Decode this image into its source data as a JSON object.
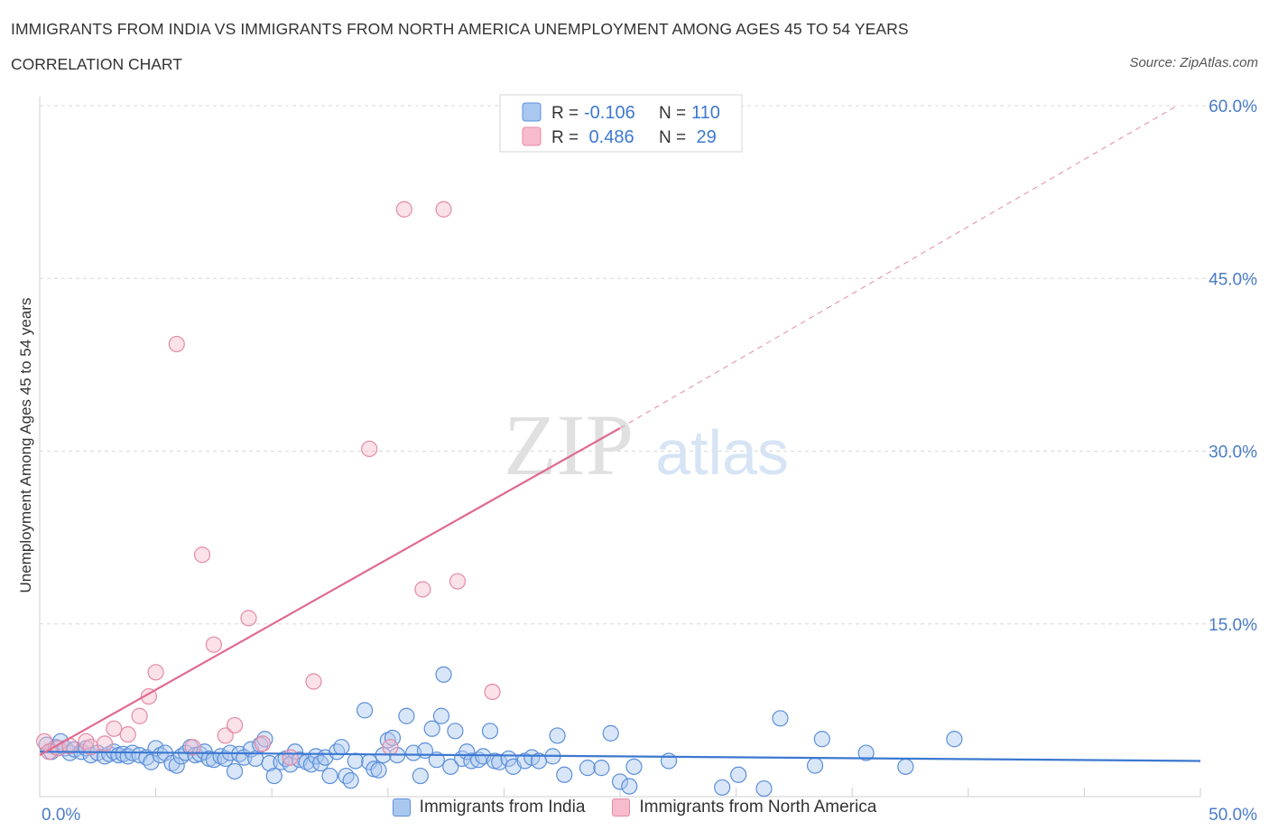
{
  "title": "IMMIGRANTS FROM INDIA VS IMMIGRANTS FROM NORTH AMERICA UNEMPLOYMENT AMONG AGES 45 TO 54 YEARS",
  "subtitle": "CORRELATION CHART",
  "source": "Source: ZipAtlas.com",
  "watermark": {
    "zip": "ZIP",
    "atlas": "atlas"
  },
  "colors": {
    "india_fill": "#aac8ef",
    "india_stroke": "#5b8fd9",
    "india_line": "#3c78d0",
    "na_fill": "#f6bccd",
    "na_stroke": "#e48aa6",
    "na_line": "#e06a90",
    "axis_label": "#4a7cc9",
    "grid": "#d8d8d8"
  },
  "stats_box": {
    "rows": [
      {
        "r_label": "R =",
        "r_value": "-0.106",
        "n_label": "N =",
        "n_value": "110"
      },
      {
        "r_label": "R =",
        "r_value": " 0.486",
        "n_label": "N =",
        "n_value": " 29"
      }
    ]
  },
  "chart_data": {
    "type": "scatter",
    "ylabel": "Unemployment Among Ages 45 to 54 years",
    "xlim": [
      0,
      50
    ],
    "ylim": [
      0,
      60
    ],
    "x_tick_labels": {
      "min": "0.0%",
      "max": "50.0%"
    },
    "y_ticks": [
      {
        "value": 15,
        "label": "15.0%"
      },
      {
        "value": 30,
        "label": "30.0%"
      },
      {
        "value": 45,
        "label": "45.0%"
      },
      {
        "value": 60,
        "label": "60.0%"
      }
    ],
    "grid": true,
    "legend_position": "bottom-center",
    "series": [
      {
        "name": "Immigrants from India",
        "R": -0.106,
        "N": 110,
        "trend": {
          "x0": 0,
          "y0": 3.9,
          "x1": 50,
          "y1": 3.1
        },
        "points": [
          [
            0.3,
            4.5
          ],
          [
            0.5,
            3.9
          ],
          [
            0.7,
            4.3
          ],
          [
            0.9,
            4.8
          ],
          [
            1.1,
            4.2
          ],
          [
            1.3,
            3.8
          ],
          [
            1.5,
            4.1
          ],
          [
            1.8,
            3.9
          ],
          [
            2.0,
            4.2
          ],
          [
            2.2,
            3.6
          ],
          [
            2.5,
            3.8
          ],
          [
            2.8,
            3.5
          ],
          [
            3.0,
            3.7
          ],
          [
            3.2,
            3.9
          ],
          [
            3.4,
            3.6
          ],
          [
            3.6,
            3.7
          ],
          [
            3.8,
            3.5
          ],
          [
            4.0,
            3.8
          ],
          [
            4.3,
            3.6
          ],
          [
            4.6,
            3.4
          ],
          [
            4.8,
            3.0
          ],
          [
            5.0,
            4.2
          ],
          [
            5.2,
            3.6
          ],
          [
            5.4,
            3.8
          ],
          [
            5.7,
            2.9
          ],
          [
            5.9,
            2.7
          ],
          [
            6.1,
            3.5
          ],
          [
            6.3,
            3.8
          ],
          [
            6.5,
            4.3
          ],
          [
            6.7,
            3.6
          ],
          [
            6.9,
            3.7
          ],
          [
            7.1,
            3.9
          ],
          [
            7.3,
            3.3
          ],
          [
            7.5,
            3.2
          ],
          [
            7.8,
            3.5
          ],
          [
            8.0,
            3.3
          ],
          [
            8.2,
            3.8
          ],
          [
            8.4,
            2.2
          ],
          [
            8.6,
            3.7
          ],
          [
            8.8,
            3.4
          ],
          [
            9.1,
            4.1
          ],
          [
            9.3,
            3.3
          ],
          [
            9.5,
            4.5
          ],
          [
            9.7,
            5.0
          ],
          [
            9.9,
            2.9
          ],
          [
            10.1,
            1.8
          ],
          [
            10.4,
            3.0
          ],
          [
            10.6,
            3.3
          ],
          [
            10.8,
            2.8
          ],
          [
            11.0,
            3.9
          ],
          [
            11.2,
            3.2
          ],
          [
            11.5,
            3.0
          ],
          [
            11.7,
            2.8
          ],
          [
            11.9,
            3.5
          ],
          [
            12.1,
            2.9
          ],
          [
            12.3,
            3.4
          ],
          [
            12.5,
            1.8
          ],
          [
            12.8,
            3.9
          ],
          [
            13.0,
            4.3
          ],
          [
            13.2,
            1.8
          ],
          [
            13.4,
            1.4
          ],
          [
            13.6,
            3.1
          ],
          [
            14.0,
            7.5
          ],
          [
            14.2,
            3.0
          ],
          [
            14.4,
            2.4
          ],
          [
            14.6,
            2.3
          ],
          [
            14.8,
            3.6
          ],
          [
            15.0,
            4.9
          ],
          [
            15.2,
            5.1
          ],
          [
            15.4,
            3.6
          ],
          [
            15.8,
            7.0
          ],
          [
            16.1,
            3.8
          ],
          [
            16.4,
            1.8
          ],
          [
            16.6,
            4.0
          ],
          [
            16.9,
            5.9
          ],
          [
            17.1,
            3.2
          ],
          [
            17.3,
            7.0
          ],
          [
            17.4,
            10.6
          ],
          [
            17.7,
            2.6
          ],
          [
            17.9,
            5.7
          ],
          [
            18.2,
            3.3
          ],
          [
            18.4,
            3.9
          ],
          [
            18.6,
            3.1
          ],
          [
            18.9,
            3.2
          ],
          [
            19.1,
            3.5
          ],
          [
            19.4,
            5.7
          ],
          [
            19.6,
            3.1
          ],
          [
            19.8,
            3.0
          ],
          [
            20.2,
            3.3
          ],
          [
            20.4,
            2.6
          ],
          [
            20.9,
            3.1
          ],
          [
            21.2,
            3.4
          ],
          [
            21.5,
            3.1
          ],
          [
            22.1,
            3.5
          ],
          [
            22.3,
            5.3
          ],
          [
            22.6,
            1.9
          ],
          [
            23.6,
            2.5
          ],
          [
            24.2,
            2.5
          ],
          [
            24.6,
            5.5
          ],
          [
            25.0,
            1.3
          ],
          [
            25.4,
            0.9
          ],
          [
            25.6,
            2.6
          ],
          [
            27.1,
            3.1
          ],
          [
            29.4,
            0.8
          ],
          [
            30.1,
            1.9
          ],
          [
            31.2,
            0.7
          ],
          [
            31.9,
            6.8
          ],
          [
            33.4,
            2.7
          ],
          [
            33.7,
            5.0
          ],
          [
            35.6,
            3.8
          ],
          [
            37.3,
            2.6
          ],
          [
            39.4,
            5.0
          ]
        ]
      },
      {
        "name": "Immigrants from North America",
        "R": 0.486,
        "N": 29,
        "trend": {
          "x0": 0,
          "y0": 3.6,
          "x1": 25,
          "y1": 32,
          "dashed_to_x": 49,
          "dashed_to_y": 60
        },
        "points": [
          [
            0.2,
            4.8
          ],
          [
            0.4,
            3.9
          ],
          [
            0.8,
            4.2
          ],
          [
            1.3,
            4.4
          ],
          [
            2.0,
            4.8
          ],
          [
            2.2,
            4.3
          ],
          [
            2.8,
            4.6
          ],
          [
            3.2,
            5.9
          ],
          [
            3.8,
            5.4
          ],
          [
            4.3,
            7.0
          ],
          [
            4.7,
            8.7
          ],
          [
            5.0,
            10.8
          ],
          [
            5.9,
            39.3
          ],
          [
            6.6,
            4.3
          ],
          [
            7.0,
            21.0
          ],
          [
            7.5,
            13.2
          ],
          [
            8.0,
            5.3
          ],
          [
            8.4,
            6.2
          ],
          [
            9.0,
            15.5
          ],
          [
            9.6,
            4.6
          ],
          [
            10.8,
            3.4
          ],
          [
            11.8,
            10.0
          ],
          [
            14.2,
            30.2
          ],
          [
            15.1,
            4.3
          ],
          [
            15.7,
            51.0
          ],
          [
            16.5,
            18.0
          ],
          [
            17.4,
            51.0
          ],
          [
            18.0,
            18.7
          ],
          [
            19.5,
            9.1
          ]
        ]
      }
    ]
  }
}
